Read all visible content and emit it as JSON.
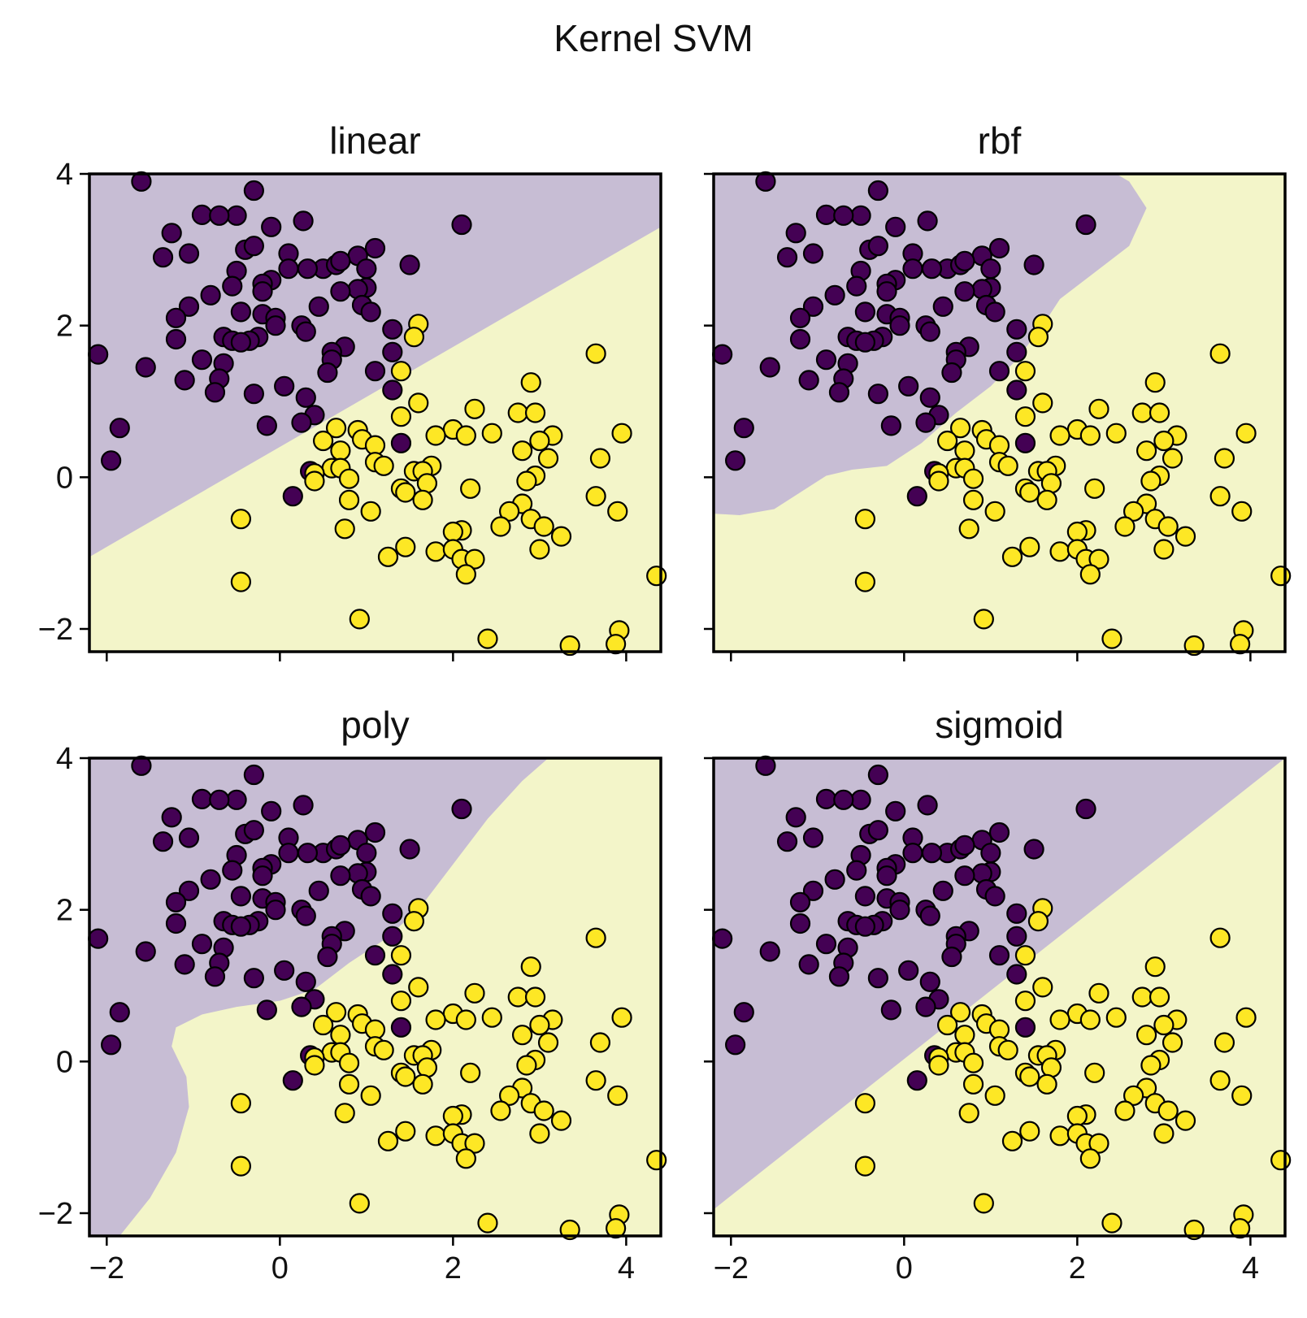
{
  "figure": {
    "title": "Kernel SVM"
  },
  "colors": {
    "class0_region": "#c7bdd4",
    "class1_region": "#f3f5c9",
    "class0_point": "#440154",
    "class1_point": "#fde725",
    "edge": "#000000"
  },
  "chart_data": [
    {
      "type": "scatter",
      "title": "linear",
      "xlim": [
        -2.2,
        4.4
      ],
      "ylim": [
        -2.3,
        4.0
      ],
      "xticks": [
        -2,
        0,
        2,
        4
      ],
      "yticks": [
        -2,
        0,
        2,
        4
      ],
      "xticklabels": [
        "",
        "",
        "",
        ""
      ],
      "yticklabels": [
        "−2",
        "0",
        "2",
        "4"
      ],
      "decision_boundary": {
        "shape": "line",
        "points": [
          [
            -2.2,
            -1.05
          ],
          [
            4.4,
            3.3
          ]
        ]
      }
    },
    {
      "type": "scatter",
      "title": "rbf",
      "xlim": [
        -2.2,
        4.4
      ],
      "ylim": [
        -2.3,
        4.0
      ],
      "xticks": [
        -2,
        0,
        2,
        4
      ],
      "yticks": [
        -2,
        0,
        2,
        4
      ],
      "xticklabels": [
        "",
        "",
        "",
        ""
      ],
      "yticklabels": [
        "",
        "",
        "",
        ""
      ],
      "decision_boundary": {
        "shape": "curve",
        "points": [
          [
            -2.2,
            -0.48
          ],
          [
            -1.9,
            -0.5
          ],
          [
            -1.5,
            -0.42
          ],
          [
            -1.2,
            -0.2
          ],
          [
            -0.9,
            0.02
          ],
          [
            -0.6,
            0.1
          ],
          [
            -0.2,
            0.15
          ],
          [
            0.2,
            0.45
          ],
          [
            0.6,
            0.85
          ],
          [
            1.0,
            1.2
          ],
          [
            1.3,
            1.55
          ],
          [
            1.6,
            2.0
          ],
          [
            1.8,
            2.35
          ],
          [
            2.2,
            2.7
          ],
          [
            2.6,
            3.05
          ],
          [
            2.8,
            3.55
          ],
          [
            2.6,
            3.9
          ],
          [
            2.45,
            4.0
          ]
        ]
      }
    },
    {
      "type": "scatter",
      "title": "poly",
      "xlim": [
        -2.2,
        4.4
      ],
      "ylim": [
        -2.3,
        4.0
      ],
      "xticks": [
        -2,
        0,
        2,
        4
      ],
      "yticks": [
        -2,
        0,
        2,
        4
      ],
      "xticklabels": [
        "−2",
        "0",
        "2",
        "4"
      ],
      "yticklabels": [
        "−2",
        "0",
        "2",
        "4"
      ],
      "decision_boundary": {
        "shape": "curve",
        "points": [
          [
            -1.85,
            -2.3
          ],
          [
            -1.5,
            -1.8
          ],
          [
            -1.2,
            -1.2
          ],
          [
            -1.05,
            -0.6
          ],
          [
            -1.08,
            -0.2
          ],
          [
            -1.25,
            0.2
          ],
          [
            -1.2,
            0.45
          ],
          [
            -0.9,
            0.62
          ],
          [
            -0.5,
            0.72
          ],
          [
            0.0,
            0.8
          ],
          [
            0.4,
            0.95
          ],
          [
            0.8,
            1.3
          ],
          [
            1.2,
            1.6
          ],
          [
            1.6,
            2.0
          ],
          [
            2.0,
            2.6
          ],
          [
            2.4,
            3.2
          ],
          [
            2.8,
            3.7
          ],
          [
            3.1,
            4.0
          ]
        ]
      }
    },
    {
      "type": "scatter",
      "title": "sigmoid",
      "xlim": [
        -2.2,
        4.4
      ],
      "ylim": [
        -2.3,
        4.0
      ],
      "xticks": [
        -2,
        0,
        2,
        4
      ],
      "yticks": [
        -2,
        0,
        2,
        4
      ],
      "xticklabels": [
        "−2",
        "0",
        "2",
        "4"
      ],
      "yticklabels": [
        "",
        "",
        "",
        ""
      ],
      "decision_boundary": {
        "shape": "line",
        "points": [
          [
            -2.2,
            -1.95
          ],
          [
            4.4,
            4.0
          ]
        ]
      }
    }
  ],
  "points": {
    "class0": [
      [
        -1.6,
        3.9
      ],
      [
        -0.3,
        3.78
      ],
      [
        -0.9,
        3.46
      ],
      [
        -0.5,
        3.45
      ],
      [
        -0.7,
        3.45
      ],
      [
        0.27,
        3.38
      ],
      [
        -0.1,
        3.3
      ],
      [
        2.1,
        3.33
      ],
      [
        -1.25,
        3.22
      ],
      [
        -0.4,
        3.0
      ],
      [
        -0.3,
        3.05
      ],
      [
        0.1,
        2.95
      ],
      [
        0.9,
        2.92
      ],
      [
        1.1,
        3.02
      ],
      [
        -1.35,
        2.9
      ],
      [
        -1.05,
        2.95
      ],
      [
        1.5,
        2.8
      ],
      [
        0.5,
        2.75
      ],
      [
        0.65,
        2.8
      ],
      [
        0.7,
        2.85
      ],
      [
        1.0,
        2.75
      ],
      [
        0.1,
        2.75
      ],
      [
        0.32,
        2.75
      ],
      [
        -0.5,
        2.72
      ],
      [
        -0.1,
        2.6
      ],
      [
        -0.2,
        2.55
      ],
      [
        1.0,
        2.5
      ],
      [
        0.9,
        2.48
      ],
      [
        -0.55,
        2.52
      ],
      [
        -0.2,
        2.45
      ],
      [
        0.7,
        2.45
      ],
      [
        -0.8,
        2.4
      ],
      [
        -1.05,
        2.25
      ],
      [
        0.45,
        2.25
      ],
      [
        0.95,
        2.27
      ],
      [
        1.05,
        2.18
      ],
      [
        -0.45,
        2.18
      ],
      [
        -0.2,
        2.15
      ],
      [
        -0.05,
        2.1
      ],
      [
        -0.05,
        2.0
      ],
      [
        -1.2,
        2.1
      ],
      [
        0.25,
        2.0
      ],
      [
        1.3,
        1.95
      ],
      [
        0.3,
        1.92
      ],
      [
        -0.65,
        1.85
      ],
      [
        -0.25,
        1.85
      ],
      [
        -0.35,
        1.8
      ],
      [
        -0.55,
        1.8
      ],
      [
        -0.45,
        1.78
      ],
      [
        -1.2,
        1.82
      ],
      [
        0.75,
        1.72
      ],
      [
        1.3,
        1.65
      ],
      [
        0.6,
        1.65
      ],
      [
        -2.1,
        1.62
      ],
      [
        -0.9,
        1.55
      ],
      [
        -0.65,
        1.5
      ],
      [
        0.6,
        1.55
      ],
      [
        1.1,
        1.4
      ],
      [
        -1.55,
        1.45
      ],
      [
        0.55,
        1.38
      ],
      [
        -0.7,
        1.3
      ],
      [
        -1.1,
        1.28
      ],
      [
        0.05,
        1.2
      ],
      [
        1.3,
        1.15
      ],
      [
        -0.75,
        1.12
      ],
      [
        -0.3,
        1.1
      ],
      [
        0.3,
        1.05
      ],
      [
        0.4,
        0.82
      ],
      [
        0.25,
        0.72
      ],
      [
        -0.15,
        0.68
      ],
      [
        -1.85,
        0.65
      ],
      [
        1.4,
        0.45
      ],
      [
        -1.95,
        0.22
      ],
      [
        0.35,
        0.08
      ],
      [
        0.15,
        -0.25
      ]
    ],
    "class1": [
      [
        1.6,
        2.02
      ],
      [
        1.55,
        1.85
      ],
      [
        3.65,
        1.63
      ],
      [
        1.4,
        1.4
      ],
      [
        2.9,
        1.25
      ],
      [
        1.6,
        0.98
      ],
      [
        1.4,
        0.8
      ],
      [
        2.25,
        0.9
      ],
      [
        2.75,
        0.85
      ],
      [
        2.95,
        0.85
      ],
      [
        2.0,
        0.63
      ],
      [
        0.65,
        0.65
      ],
      [
        0.9,
        0.62
      ],
      [
        3.95,
        0.58
      ],
      [
        1.8,
        0.55
      ],
      [
        2.15,
        0.55
      ],
      [
        2.45,
        0.58
      ],
      [
        3.15,
        0.55
      ],
      [
        0.5,
        0.48
      ],
      [
        0.95,
        0.5
      ],
      [
        3.0,
        0.48
      ],
      [
        1.1,
        0.42
      ],
      [
        2.8,
        0.35
      ],
      [
        0.7,
        0.35
      ],
      [
        3.1,
        0.25
      ],
      [
        3.7,
        0.25
      ],
      [
        1.1,
        0.2
      ],
      [
        1.2,
        0.15
      ],
      [
        0.6,
        0.12
      ],
      [
        1.55,
        0.08
      ],
      [
        0.4,
        0.05
      ],
      [
        0.7,
        0.12
      ],
      [
        1.75,
        0.15
      ],
      [
        1.65,
        0.08
      ],
      [
        2.95,
        0.02
      ],
      [
        0.8,
        -0.02
      ],
      [
        2.85,
        -0.05
      ],
      [
        0.4,
        -0.05
      ],
      [
        1.7,
        -0.08
      ],
      [
        1.4,
        -0.15
      ],
      [
        1.45,
        -0.2
      ],
      [
        2.2,
        -0.15
      ],
      [
        1.65,
        -0.3
      ],
      [
        0.8,
        -0.3
      ],
      [
        3.65,
        -0.25
      ],
      [
        2.8,
        -0.35
      ],
      [
        1.05,
        -0.45
      ],
      [
        2.65,
        -0.45
      ],
      [
        3.9,
        -0.45
      ],
      [
        2.55,
        -0.65
      ],
      [
        0.75,
        -0.68
      ],
      [
        2.1,
        -0.7
      ],
      [
        2.0,
        -0.72
      ],
      [
        2.9,
        -0.55
      ],
      [
        3.05,
        -0.65
      ],
      [
        3.25,
        -0.78
      ],
      [
        1.45,
        -0.92
      ],
      [
        1.8,
        -0.98
      ],
      [
        2.0,
        -0.95
      ],
      [
        3.0,
        -0.95
      ],
      [
        1.25,
        -1.05
      ],
      [
        2.1,
        -1.08
      ],
      [
        2.25,
        -1.08
      ],
      [
        2.15,
        -1.28
      ],
      [
        -0.45,
        -0.55
      ],
      [
        -0.45,
        -1.38
      ],
      [
        4.35,
        -1.3
      ],
      [
        0.92,
        -1.87
      ],
      [
        3.92,
        -2.02
      ],
      [
        2.4,
        -2.13
      ],
      [
        3.35,
        -2.22
      ],
      [
        3.88,
        -2.2
      ]
    ]
  }
}
